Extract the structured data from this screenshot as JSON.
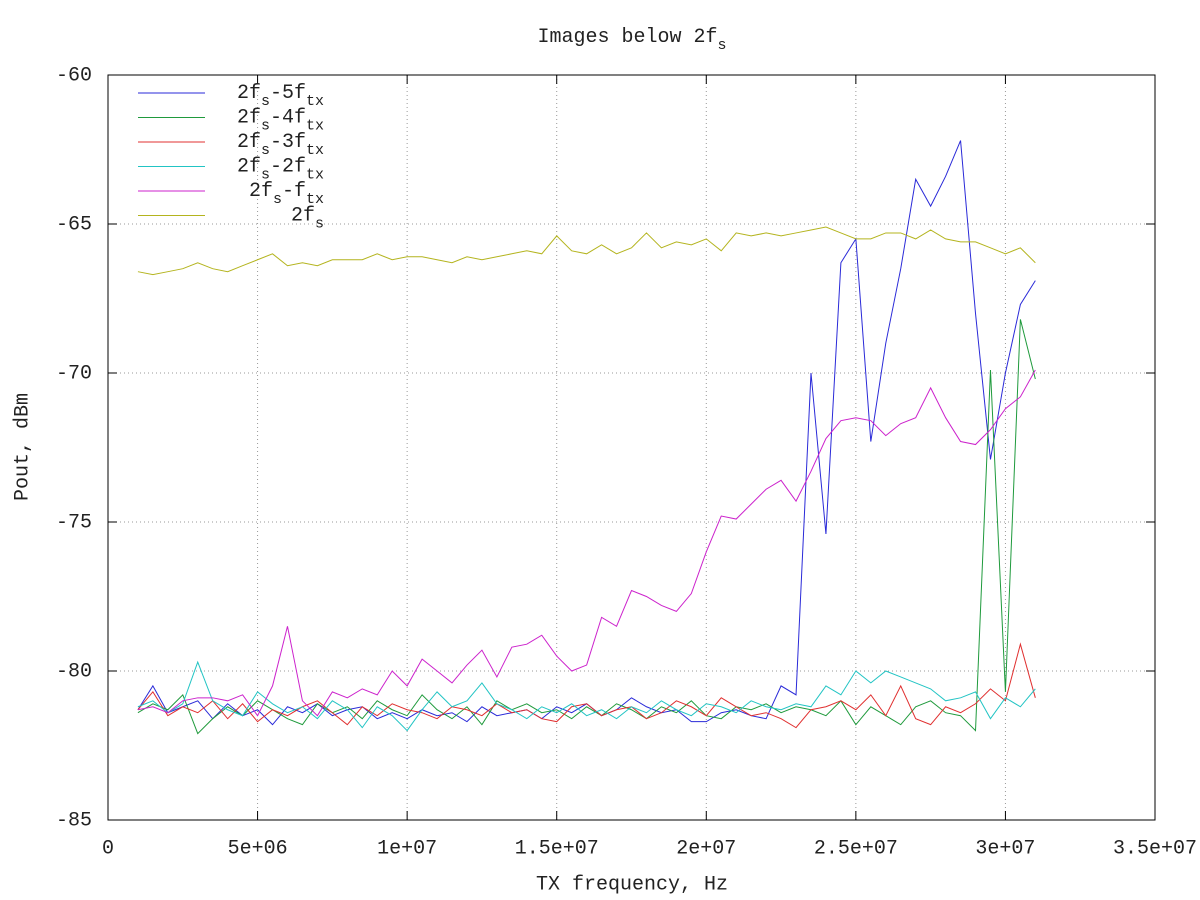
{
  "chart_data": {
    "type": "line",
    "title": "Images below 2fs",
    "x_label": "TX frequency, Hz",
    "y_label": "Pout, dBm",
    "grid": true,
    "legend": "top-left",
    "xlim": [
      0,
      35000000
    ],
    "ylim": [
      -85,
      -60
    ],
    "xticks": [
      0,
      {
        "value": 5000000,
        "label": "5e+06"
      },
      {
        "value": 10000000,
        "label": "1e+07"
      },
      {
        "value": 15000000,
        "label": "1.5e+07"
      },
      {
        "value": 20000000,
        "label": "2e+07"
      },
      {
        "value": 25000000,
        "label": "2.5e+07"
      },
      {
        "value": 30000000,
        "label": "3e+07"
      },
      {
        "value": 35000000,
        "label": "3.5e+07"
      }
    ],
    "yticks": [
      -85,
      -80,
      -75,
      -70,
      -65,
      -60
    ],
    "x": [
      1000000,
      1500000,
      2000000,
      2500000,
      3000000,
      3500000,
      4000000,
      4500000,
      5000000,
      5500000,
      6000000,
      6500000,
      7000000,
      7500000,
      8000000,
      8500000,
      9000000,
      9500000,
      10000000,
      10500000,
      11000000,
      11500000,
      12000000,
      12500000,
      13000000,
      13500000,
      14000000,
      14500000,
      15000000,
      15500000,
      16000000,
      16500000,
      17000000,
      17500000,
      18000000,
      18500000,
      19000000,
      19500000,
      20000000,
      20500000,
      21000000,
      21500000,
      22000000,
      22500000,
      23000000,
      23500000,
      24000000,
      24500000,
      25000000,
      25500000,
      26000000,
      26500000,
      27000000,
      27500000,
      28000000,
      28500000,
      29000000,
      29500000,
      30000000,
      30500000,
      31000000
    ],
    "series": [
      {
        "name": "2fs-5ftx",
        "color": "#2a2ad8",
        "values": [
          -81.3,
          -80.5,
          -81.4,
          -81.2,
          -81.0,
          -81.6,
          -81.1,
          -81.5,
          -81.3,
          -81.8,
          -81.2,
          -81.4,
          -81.1,
          -81.5,
          -81.3,
          -81.2,
          -81.6,
          -81.4,
          -81.6,
          -81.3,
          -81.5,
          -81.4,
          -81.7,
          -81.2,
          -81.5,
          -81.4,
          -81.3,
          -81.6,
          -81.2,
          -81.4,
          -81.1,
          -81.5,
          -81.3,
          -80.9,
          -81.2,
          -81.4,
          -81.3,
          -81.7,
          -81.7,
          -81.4,
          -81.3,
          -81.5,
          -81.6,
          -80.5,
          -80.8,
          -70.0,
          -75.4,
          -66.3,
          -65.5,
          -72.3,
          -69.0,
          -66.5,
          -63.5,
          -64.4,
          -63.4,
          -62.2,
          -68.0,
          -72.9,
          -70.0,
          -67.7,
          -66.9
        ]
      },
      {
        "name": "2fs-4ftx",
        "color": "#1f9a3c",
        "values": [
          -81.4,
          -81.1,
          -81.3,
          -80.8,
          -82.1,
          -81.6,
          -81.2,
          -81.5,
          -81.0,
          -81.3,
          -81.6,
          -81.8,
          -81.1,
          -81.4,
          -81.2,
          -81.6,
          -81.0,
          -81.3,
          -81.5,
          -80.8,
          -81.3,
          -81.6,
          -81.2,
          -81.8,
          -81.0,
          -81.3,
          -81.1,
          -81.4,
          -81.3,
          -81.6,
          -81.2,
          -81.5,
          -81.1,
          -81.3,
          -81.6,
          -81.2,
          -81.4,
          -81.0,
          -81.5,
          -81.6,
          -81.2,
          -81.3,
          -81.1,
          -81.4,
          -81.2,
          -81.3,
          -81.5,
          -81.0,
          -81.8,
          -81.2,
          -81.5,
          -81.8,
          -81.2,
          -81.0,
          -81.4,
          -81.5,
          -82.0,
          -69.9,
          -80.7,
          -68.2,
          -70.2
        ]
      },
      {
        "name": "2fs-3ftx",
        "color": "#e03030",
        "values": [
          -81.3,
          -80.7,
          -81.5,
          -81.2,
          -81.4,
          -81.0,
          -81.6,
          -81.1,
          -81.7,
          -81.3,
          -81.5,
          -81.2,
          -81.0,
          -81.4,
          -81.8,
          -81.2,
          -81.5,
          -81.1,
          -81.3,
          -81.4,
          -81.6,
          -81.2,
          -81.3,
          -81.5,
          -81.1,
          -81.4,
          -81.3,
          -81.6,
          -81.7,
          -81.2,
          -81.1,
          -81.5,
          -81.3,
          -81.2,
          -81.6,
          -81.4,
          -81.0,
          -81.2,
          -81.5,
          -80.9,
          -81.2,
          -81.5,
          -81.4,
          -81.6,
          -81.9,
          -81.3,
          -81.2,
          -81.0,
          -81.3,
          -80.8,
          -81.5,
          -80.5,
          -81.6,
          -81.8,
          -81.2,
          -81.4,
          -81.1,
          -80.6,
          -81.0,
          -79.1,
          -80.9
        ]
      },
      {
        "name": "2fs-2ftx",
        "color": "#22c4c4",
        "values": [
          -81.2,
          -81.0,
          -81.4,
          -81.1,
          -79.7,
          -81.0,
          -81.3,
          -81.5,
          -80.7,
          -81.1,
          -81.4,
          -81.2,
          -81.6,
          -81.0,
          -81.3,
          -81.9,
          -81.2,
          -81.5,
          -82.0,
          -81.3,
          -80.7,
          -81.2,
          -81.0,
          -80.4,
          -81.1,
          -81.3,
          -81.6,
          -81.2,
          -81.4,
          -81.1,
          -81.5,
          -81.3,
          -81.6,
          -81.2,
          -81.4,
          -81.0,
          -81.3,
          -81.5,
          -81.1,
          -81.2,
          -81.4,
          -81.0,
          -81.2,
          -81.3,
          -81.1,
          -81.2,
          -80.5,
          -80.8,
          -80.0,
          -80.4,
          -80.0,
          -80.2,
          -80.4,
          -80.6,
          -81.0,
          -80.9,
          -80.7,
          -81.6,
          -80.9,
          -81.2,
          -80.6
        ]
      },
      {
        "name": "2fs-ftx",
        "color": "#cc22cc",
        "values": [
          -81.3,
          -81.2,
          -81.4,
          -81.0,
          -80.9,
          -80.9,
          -81.0,
          -80.8,
          -81.5,
          -80.5,
          -78.5,
          -81.0,
          -81.5,
          -80.7,
          -80.9,
          -80.6,
          -80.8,
          -80.0,
          -80.5,
          -79.6,
          -80.0,
          -80.4,
          -79.8,
          -79.3,
          -80.2,
          -79.2,
          -79.1,
          -78.8,
          -79.5,
          -80.0,
          -79.8,
          -78.2,
          -78.5,
          -77.3,
          -77.5,
          -77.8,
          -78.0,
          -77.4,
          -76.0,
          -74.8,
          -74.9,
          -74.4,
          -73.9,
          -73.6,
          -74.3,
          -73.3,
          -72.2,
          -71.6,
          -71.5,
          -71.6,
          -72.1,
          -71.7,
          -71.5,
          -70.5,
          -71.5,
          -72.3,
          -72.4,
          -71.9,
          -71.2,
          -70.8,
          -69.9
        ]
      },
      {
        "name": "2fs",
        "color": "#b4b41e",
        "values": [
          -66.6,
          -66.7,
          -66.6,
          -66.5,
          -66.3,
          -66.5,
          -66.6,
          -66.4,
          -66.2,
          -66.0,
          -66.4,
          -66.3,
          -66.4,
          -66.2,
          -66.2,
          -66.2,
          -66.0,
          -66.2,
          -66.1,
          -66.1,
          -66.2,
          -66.3,
          -66.1,
          -66.2,
          -66.1,
          -66.0,
          -65.9,
          -66.0,
          -65.4,
          -65.9,
          -66.0,
          -65.7,
          -66.0,
          -65.8,
          -65.3,
          -65.8,
          -65.6,
          -65.7,
          -65.5,
          -65.9,
          -65.3,
          -65.4,
          -65.3,
          -65.4,
          -65.3,
          -65.2,
          -65.1,
          -65.3,
          -65.5,
          -65.5,
          -65.3,
          -65.3,
          -65.5,
          -65.2,
          -65.5,
          -65.6,
          -65.6,
          -65.8,
          -66.0,
          -65.8,
          -66.3
        ]
      }
    ]
  }
}
